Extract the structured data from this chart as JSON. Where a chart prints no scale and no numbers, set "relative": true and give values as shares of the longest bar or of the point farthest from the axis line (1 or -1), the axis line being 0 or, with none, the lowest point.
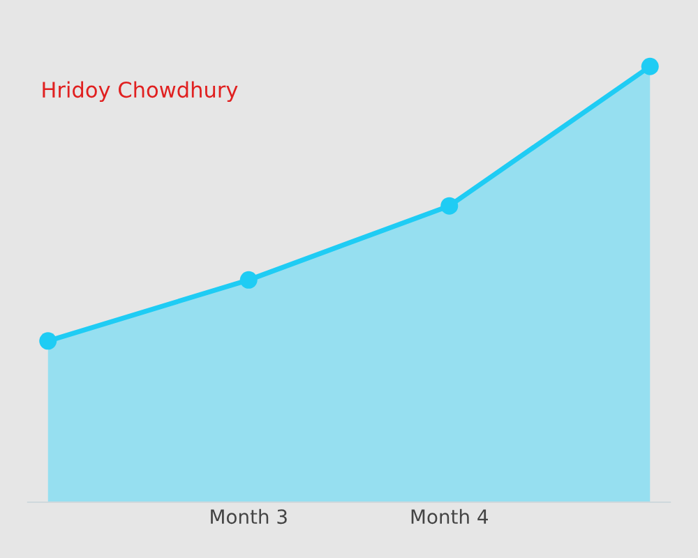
{
  "chart_data": {
    "type": "area",
    "relative": true,
    "categories": [
      null,
      "Month 3",
      "Month 4",
      null
    ],
    "series": [
      {
        "color": "#96dff0",
        "values": [
          0.37,
          0.51,
          0.68,
          1.0
        ]
      }
    ],
    "marker": "circle",
    "annotations": [
      "Hridoy Chowdhury"
    ]
  }
}
